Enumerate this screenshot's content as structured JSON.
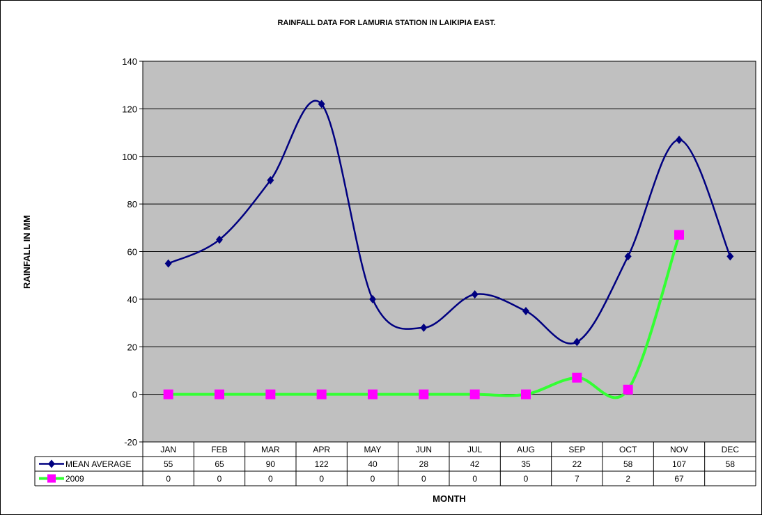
{
  "chart_data": {
    "type": "line",
    "title": "RAINFALL DATA FOR LAMURIA STATION IN LAIKIPIA EAST.",
    "xlabel": "MONTH",
    "ylabel": "RAINFALL IN MM",
    "categories": [
      "JAN",
      "FEB",
      "MAR",
      "APR",
      "MAY",
      "JUN",
      "JUL",
      "AUG",
      "SEP",
      "OCT",
      "NOV",
      "DEC"
    ],
    "ylim": [
      -20,
      140
    ],
    "yticks": [
      "-20",
      "0",
      "20",
      "40",
      "60",
      "80",
      "100",
      "120",
      "140"
    ],
    "grid": true,
    "series": [
      {
        "name": "MEAN AVERAGE",
        "values": [
          55,
          65,
          90,
          122,
          40,
          28,
          42,
          35,
          22,
          58,
          107,
          58
        ],
        "table_values": [
          "55",
          "65",
          "90",
          "122",
          "40",
          "28",
          "42",
          "35",
          "22",
          "58",
          "107",
          "58"
        ],
        "color": "#000080",
        "marker": "diamond"
      },
      {
        "name": "2009",
        "values": [
          0,
          0,
          0,
          0,
          0,
          0,
          0,
          0,
          7,
          2,
          67,
          null
        ],
        "table_values": [
          "0",
          "0",
          "0",
          "0",
          "0",
          "0",
          "0",
          "0",
          "7",
          "2",
          "67",
          ""
        ],
        "color": "#33ff33",
        "marker_color": "#ff00ff",
        "marker": "square"
      }
    ],
    "colors": {
      "plot_background": "#c0c0c0",
      "gridline": "#000000"
    }
  }
}
